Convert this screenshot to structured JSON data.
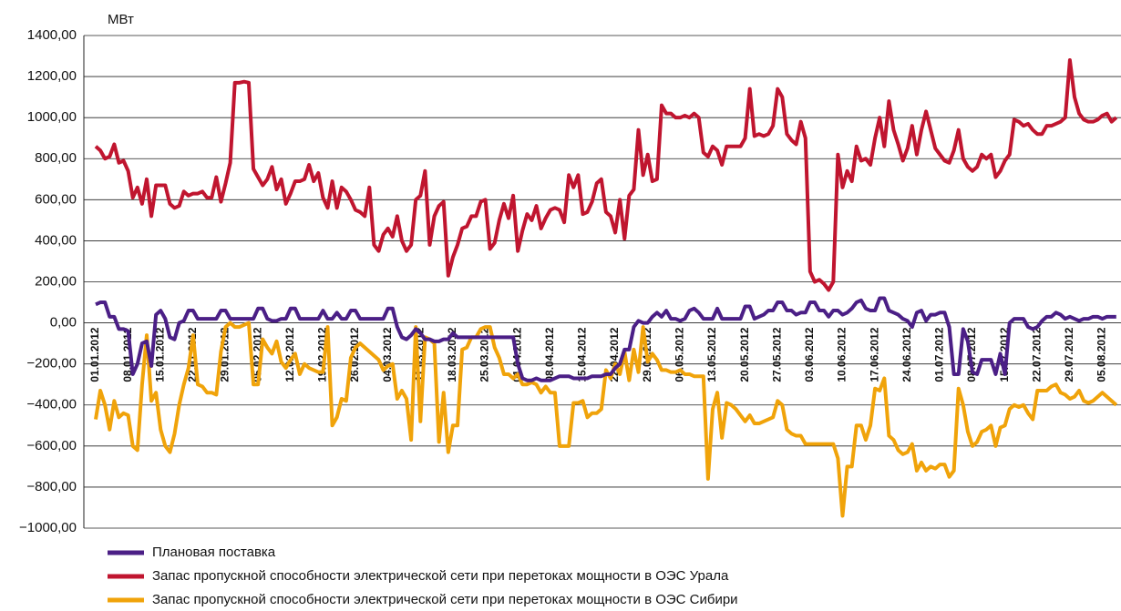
{
  "chart_data": {
    "type": "line",
    "y_label": "МВт",
    "categories": [
      "01.01.2012",
      null,
      null,
      null,
      null,
      null,
      null,
      "08.01.2012",
      null,
      null,
      null,
      null,
      null,
      null,
      "15.01.2012",
      null,
      null,
      null,
      null,
      null,
      null,
      "22.01.2012",
      null,
      null,
      null,
      null,
      null,
      null,
      "29.01.2012",
      null,
      null,
      null,
      null,
      null,
      null,
      "05.02.2012",
      null,
      null,
      null,
      null,
      null,
      null,
      "12.02.2012",
      null,
      null,
      null,
      null,
      null,
      null,
      "19.02.2012",
      null,
      null,
      null,
      null,
      null,
      null,
      "26.02.2012",
      null,
      null,
      null,
      null,
      null,
      null,
      "04.03.2012",
      null,
      null,
      null,
      null,
      null,
      null,
      "11.03.2012",
      null,
      null,
      null,
      null,
      null,
      null,
      "18.03.2012",
      null,
      null,
      null,
      null,
      null,
      null,
      "25.03.2012",
      null,
      null,
      null,
      null,
      null,
      null,
      "01.04.2012",
      null,
      null,
      null,
      null,
      null,
      null,
      "08.04.2012",
      null,
      null,
      null,
      null,
      null,
      null,
      "15.04.2012",
      null,
      null,
      null,
      null,
      null,
      null,
      "22.04.2012",
      null,
      null,
      null,
      null,
      null,
      null,
      "29.04.2012",
      null,
      null,
      null,
      null,
      null,
      null,
      "06.05.2012",
      null,
      null,
      null,
      null,
      null,
      null,
      "13.05.2012",
      null,
      null,
      null,
      null,
      null,
      null,
      "20.05.2012",
      null,
      null,
      null,
      null,
      null,
      null,
      "27.05.2012",
      null,
      null,
      null,
      null,
      null,
      null,
      "03.06.2012",
      null,
      null,
      null,
      null,
      null,
      null,
      "10.06.2012",
      null,
      null,
      null,
      null,
      null,
      null,
      "17.06.2012",
      null,
      null,
      null,
      null,
      null,
      null,
      "24.06.2012",
      null,
      null,
      null,
      null,
      null,
      null,
      "01.07.2012",
      null,
      null,
      null,
      null,
      null,
      null,
      "08.07.2012",
      null,
      null,
      null,
      null,
      null,
      null,
      "15.07.2012",
      null,
      null,
      null,
      null,
      null,
      null,
      "22.07.2012",
      null,
      null,
      null,
      null,
      null,
      null,
      "29.07.2012",
      null,
      null,
      null,
      null,
      null,
      null,
      "05.08.2012",
      null,
      null,
      null
    ],
    "series": [
      {
        "name": "Плановая поставка",
        "color": "#4b1f86",
        "values": [
          90,
          100,
          100,
          30,
          30,
          -30,
          -30,
          -40,
          -250,
          -200,
          -100,
          -90,
          -210,
          40,
          60,
          20,
          -70,
          -80,
          0,
          10,
          60,
          60,
          20,
          20,
          20,
          20,
          20,
          60,
          60,
          20,
          20,
          20,
          20,
          20,
          20,
          70,
          70,
          20,
          10,
          10,
          20,
          20,
          70,
          70,
          20,
          20,
          20,
          20,
          20,
          60,
          20,
          20,
          50,
          20,
          20,
          60,
          60,
          20,
          20,
          20,
          20,
          20,
          20,
          70,
          70,
          -20,
          -70,
          -80,
          -60,
          -30,
          -50,
          -80,
          -80,
          -90,
          -90,
          -80,
          -80,
          -50,
          -70,
          -70,
          -70,
          -70,
          -70,
          -70,
          -70,
          -70,
          -70,
          -70,
          -70,
          -70,
          -70,
          -200,
          -270,
          -280,
          -280,
          -270,
          -280,
          -280,
          -280,
          -270,
          -260,
          -260,
          -260,
          -270,
          -270,
          -270,
          -270,
          -260,
          -260,
          -260,
          -250,
          -250,
          -220,
          -200,
          -130,
          -130,
          -20,
          10,
          0,
          0,
          30,
          50,
          30,
          60,
          20,
          20,
          10,
          20,
          60,
          70,
          50,
          20,
          20,
          20,
          70,
          20,
          20,
          20,
          20,
          20,
          80,
          80,
          20,
          30,
          40,
          60,
          60,
          100,
          100,
          60,
          60,
          40,
          50,
          50,
          100,
          100,
          60,
          60,
          30,
          60,
          60,
          40,
          50,
          70,
          100,
          110,
          70,
          60,
          60,
          120,
          120,
          60,
          50,
          40,
          20,
          10,
          -20,
          50,
          60,
          10,
          40,
          40,
          50,
          50,
          -20,
          -250,
          -250,
          -30,
          -90,
          -240,
          -250,
          -180,
          -180,
          -180,
          -250,
          -150,
          -250,
          0,
          20,
          20,
          20,
          -20,
          -30,
          -20,
          10,
          30,
          30,
          50,
          40,
          20,
          30,
          20,
          10,
          20,
          20,
          30,
          30,
          20,
          30,
          30,
          30
        ]
      },
      {
        "name": "Запас пропускной способности электрической сети при перетоках мощности в ОЭС Урала",
        "color": "#c0152f",
        "values": [
          860,
          840,
          800,
          810,
          870,
          780,
          790,
          740,
          610,
          660,
          580,
          700,
          520,
          670,
          670,
          670,
          580,
          560,
          570,
          640,
          620,
          630,
          630,
          640,
          610,
          610,
          710,
          590,
          680,
          780,
          1170,
          1170,
          1175,
          1170,
          750,
          710,
          670,
          700,
          760,
          650,
          700,
          580,
          630,
          690,
          690,
          700,
          770,
          690,
          730,
          610,
          560,
          690,
          560,
          660,
          640,
          600,
          550,
          540,
          520,
          660,
          380,
          350,
          430,
          460,
          420,
          520,
          400,
          350,
          380,
          600,
          620,
          740,
          380,
          520,
          570,
          590,
          230,
          320,
          380,
          460,
          470,
          520,
          520,
          590,
          600,
          360,
          390,
          500,
          580,
          510,
          620,
          350,
          450,
          530,
          500,
          570,
          460,
          510,
          550,
          560,
          550,
          490,
          720,
          660,
          720,
          530,
          540,
          590,
          680,
          700,
          540,
          520,
          440,
          600,
          410,
          620,
          650,
          940,
          720,
          820,
          690,
          700,
          1060,
          1020,
          1020,
          1000,
          1000,
          1010,
          1000,
          1020,
          1000,
          830,
          810,
          860,
          840,
          770,
          860,
          860,
          860,
          860,
          900,
          1140,
          910,
          920,
          910,
          920,
          960,
          1140,
          1100,
          920,
          890,
          870,
          980,
          900,
          250,
          200,
          210,
          190,
          160,
          200,
          820,
          660,
          740,
          690,
          860,
          790,
          800,
          770,
          900,
          1000,
          860,
          1080,
          940,
          870,
          790,
          850,
          960,
          820,
          940,
          1030,
          940,
          850,
          820,
          790,
          780,
          840,
          940,
          800,
          760,
          740,
          760,
          820,
          800,
          820,
          710,
          740,
          790,
          820,
          990,
          980,
          960,
          970,
          940,
          920,
          920,
          960,
          960,
          970,
          980,
          1000,
          1280,
          1100,
          1020,
          990,
          980,
          980,
          990,
          1010,
          1020,
          980,
          1000
        ]
      },
      {
        "name": "Запас пропускной способности электрической сети при перетоках мощности в ОЭС Сибири",
        "color": "#f0a30a",
        "values": [
          -470,
          -330,
          -400,
          -520,
          -380,
          -460,
          -440,
          -450,
          -600,
          -620,
          -300,
          -60,
          -380,
          -340,
          -520,
          -600,
          -630,
          -540,
          -400,
          -300,
          -220,
          -60,
          -300,
          -310,
          -340,
          -340,
          -350,
          -140,
          -20,
          0,
          -20,
          -20,
          -10,
          0,
          -300,
          -300,
          -80,
          -120,
          -150,
          -90,
          -190,
          -220,
          -180,
          -150,
          -250,
          -200,
          -220,
          -230,
          -240,
          -240,
          -20,
          -500,
          -460,
          -370,
          -380,
          -170,
          -120,
          -100,
          -120,
          -140,
          -160,
          -180,
          -230,
          -210,
          -200,
          -370,
          -330,
          -370,
          -570,
          -20,
          -480,
          -70,
          -80,
          -100,
          -580,
          -340,
          -630,
          -500,
          -500,
          -130,
          -120,
          -70,
          -70,
          -30,
          -20,
          -20,
          -120,
          -170,
          -250,
          -250,
          -270,
          -250,
          -300,
          -300,
          -290,
          -300,
          -340,
          -310,
          -340,
          -340,
          -600,
          -600,
          -600,
          -390,
          -390,
          -380,
          -460,
          -440,
          -440,
          -420,
          -230,
          -270,
          -200,
          -250,
          -140,
          -280,
          -130,
          -240,
          -20,
          -190,
          -150,
          -180,
          -230,
          -230,
          -240,
          -240,
          -230,
          -250,
          -250,
          -260,
          -260,
          -260,
          -760,
          -420,
          -340,
          -560,
          -390,
          -400,
          -420,
          -450,
          -480,
          -450,
          -490,
          -490,
          -480,
          -470,
          -460,
          -380,
          -400,
          -520,
          -540,
          -550,
          -550,
          -590,
          -590,
          -590,
          -590,
          -590,
          -590,
          -590,
          -660,
          -940,
          -700,
          -700,
          -500,
          -500,
          -570,
          -500,
          -320,
          -330,
          -270,
          -550,
          -570,
          -620,
          -640,
          -630,
          -590,
          -720,
          -680,
          -720,
          -700,
          -710,
          -690,
          -690,
          -750,
          -720,
          -320,
          -400,
          -530,
          -600,
          -580,
          -530,
          -520,
          -500,
          -600,
          -510,
          -500,
          -420,
          -400,
          -410,
          -400,
          -440,
          -470,
          -330,
          -330,
          -330,
          -310,
          -300,
          -340,
          -350,
          -370,
          -360,
          -330,
          -380,
          -390,
          -380,
          -360,
          -340,
          -360,
          -380,
          -400
        ]
      }
    ],
    "ylim": [
      -1000,
      1400
    ],
    "yticks": [
      {
        "value": -1000,
        "label": "−1000,00"
      },
      {
        "value": -800,
        "label": "−800,00"
      },
      {
        "value": -600,
        "label": "−600,00"
      },
      {
        "value": -400,
        "label": "−400,00"
      },
      {
        "value": -200,
        "label": "−200,00"
      },
      {
        "value": 0,
        "label": "0,00"
      },
      {
        "value": 200,
        "label": "200,00"
      },
      {
        "value": 400,
        "label": "400,00"
      },
      {
        "value": 600,
        "label": "600,00"
      },
      {
        "value": 800,
        "label": "800,00"
      },
      {
        "value": 1000,
        "label": "1000,00"
      },
      {
        "value": 1200,
        "label": "1200,00"
      },
      {
        "value": 1400,
        "label": "1400,00"
      }
    ],
    "grid": true,
    "legend": "bottom-left"
  }
}
